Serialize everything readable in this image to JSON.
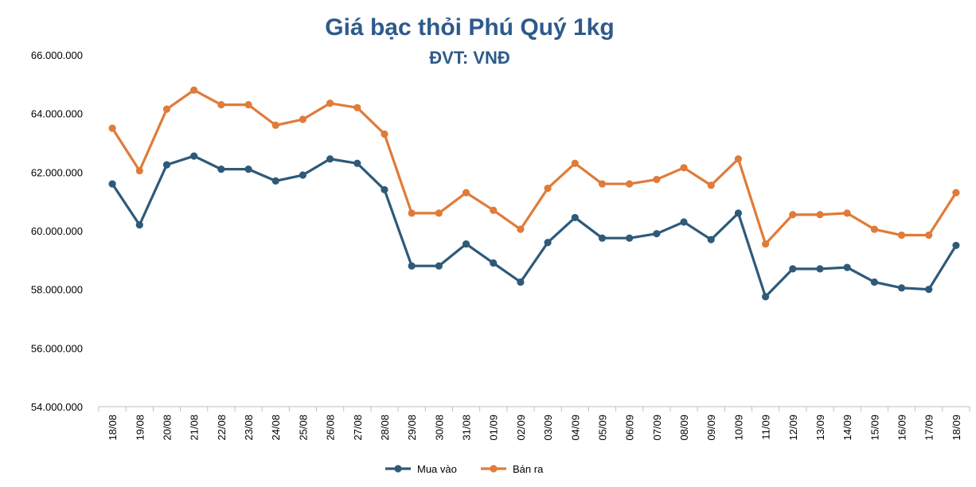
{
  "chart_data": {
    "type": "line",
    "title": "Giá bạc thỏi Phú Quý 1kg",
    "subtitle": "ĐVT: VNĐ",
    "categories": [
      "18/08",
      "19/08",
      "20/08",
      "21/08",
      "22/08",
      "23/08",
      "24/08",
      "25/08",
      "26/08",
      "27/08",
      "28/08",
      "29/08",
      "30/08",
      "31/08",
      "01/09",
      "02/09",
      "03/09",
      "04/09",
      "05/09",
      "06/09",
      "07/09",
      "08/09",
      "09/09",
      "10/09",
      "11/09",
      "12/09",
      "13/09",
      "14/09",
      "15/09",
      "16/09",
      "17/09",
      "18/09"
    ],
    "series": [
      {
        "name": "Mua vào",
        "color": "#2E5A7A",
        "values": [
          61600000,
          60200000,
          62250000,
          62550000,
          62100000,
          62100000,
          61700000,
          61900000,
          62450000,
          62300000,
          61400000,
          58800000,
          58800000,
          59550000,
          58900000,
          58250000,
          59600000,
          60450000,
          59750000,
          59750000,
          59900000,
          60300000,
          59700000,
          60600000,
          57750000,
          58700000,
          58700000,
          58750000,
          58250000,
          58050000,
          58000000,
          59500000
        ]
      },
      {
        "name": "Bán ra",
        "color": "#E07B39",
        "values": [
          63500000,
          62050000,
          64150000,
          64800000,
          64300000,
          64300000,
          63600000,
          63800000,
          64350000,
          64200000,
          63300000,
          60600000,
          60600000,
          61300000,
          60700000,
          60050000,
          61450000,
          62300000,
          61600000,
          61600000,
          61750000,
          62150000,
          61550000,
          62450000,
          59550000,
          60550000,
          60550000,
          60600000,
          60050000,
          59850000,
          59850000,
          61300000
        ]
      }
    ],
    "y_ticks": [
      "54.000.000",
      "56.000.000",
      "58.000.000",
      "60.000.000",
      "62.000.000",
      "64.000.000",
      "66.000.000"
    ],
    "ylim": [
      54000000,
      66000000
    ],
    "legend_position": "bottom",
    "grid": false
  }
}
